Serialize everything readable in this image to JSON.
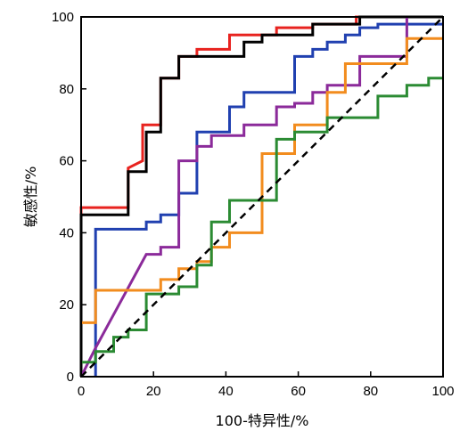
{
  "chart_data": {
    "type": "line",
    "xlabel": "100-特异性/%",
    "ylabel": "敏感性/%",
    "xlim": [
      0,
      100
    ],
    "ylim": [
      0,
      100
    ],
    "x_ticks": [
      0,
      20,
      40,
      60,
      80,
      100
    ],
    "y_ticks": [
      0,
      20,
      40,
      60,
      80,
      100
    ],
    "x_tick_labels": [
      "0",
      "20",
      "40",
      "60",
      "80",
      "100"
    ],
    "y_tick_labels": [
      "0",
      "20",
      "40",
      "60",
      "80",
      "100"
    ],
    "grid": false,
    "legend": "none",
    "reference_line": {
      "from": [
        0,
        0
      ],
      "to": [
        100,
        100
      ],
      "style": "dashed",
      "color": "#000000"
    },
    "series": [
      {
        "color": "#e8231f",
        "x": [
          0,
          0,
          13,
          13,
          17,
          17,
          22,
          22,
          27,
          27,
          32,
          32,
          41,
          41,
          54,
          54,
          64,
          64,
          76,
          76,
          100
        ],
        "y": [
          0,
          47,
          47,
          58,
          60,
          70,
          70,
          83,
          83,
          89,
          89,
          91,
          91,
          95,
          95,
          97,
          97,
          98,
          98,
          100,
          100
        ]
      },
      {
        "color": "#000000",
        "x": [
          0,
          0,
          13,
          13,
          18,
          18,
          22,
          22,
          27,
          27,
          45,
          45,
          50,
          50,
          64,
          64,
          77,
          77,
          100
        ],
        "y": [
          0,
          45,
          45,
          57,
          57,
          68,
          68,
          83,
          83,
          89,
          89,
          93,
          93,
          95,
          95,
          98,
          98,
          100,
          100
        ]
      },
      {
        "color": "#2040b0",
        "x": [
          4,
          4,
          18,
          18,
          22,
          22,
          27,
          27,
          32,
          32,
          41,
          41,
          45,
          45,
          59,
          59,
          64,
          64,
          68,
          68,
          73,
          73,
          77,
          77,
          82,
          82,
          100
        ],
        "y": [
          0,
          41,
          41,
          43,
          43,
          45,
          45,
          51,
          51,
          68,
          68,
          75,
          75,
          79,
          79,
          89,
          89,
          91,
          91,
          93,
          93,
          95,
          95,
          97,
          97,
          98,
          98
        ]
      },
      {
        "color": "#8b2a9a",
        "x": [
          0,
          4,
          18,
          22,
          22,
          27,
          27,
          32,
          32,
          36,
          36,
          45,
          45,
          54,
          54,
          59,
          59,
          64,
          64,
          68,
          68,
          77,
          77,
          90,
          90
        ],
        "y": [
          0,
          8,
          34,
          34,
          36,
          36,
          60,
          60,
          64,
          64,
          67,
          67,
          70,
          70,
          75,
          75,
          76,
          76,
          79,
          79,
          81,
          81,
          89,
          89,
          100
        ]
      },
      {
        "color": "#f28c1e",
        "x": [
          0,
          4,
          4,
          22,
          22,
          27,
          27,
          32,
          32,
          36,
          36,
          41,
          41,
          50,
          50,
          59,
          59,
          68,
          68,
          73,
          73,
          90,
          90,
          100
        ],
        "y": [
          15,
          15,
          24,
          24,
          27,
          27,
          30,
          30,
          32,
          32,
          36,
          36,
          40,
          40,
          62,
          62,
          70,
          70,
          79,
          79,
          87,
          87,
          94,
          94
        ]
      },
      {
        "color": "#2b8b33",
        "x": [
          0,
          4,
          4,
          9,
          9,
          13,
          13,
          18,
          18,
          27,
          27,
          32,
          32,
          36,
          36,
          41,
          41,
          54,
          54,
          59,
          59,
          68,
          68,
          82,
          82,
          90,
          90,
          96,
          96,
          100
        ],
        "y": [
          4,
          4,
          7,
          7,
          11,
          11,
          13,
          13,
          23,
          23,
          25,
          25,
          31,
          31,
          43,
          43,
          49,
          49,
          66,
          66,
          68,
          68,
          72,
          72,
          78,
          78,
          81,
          81,
          83,
          83
        ]
      }
    ]
  }
}
